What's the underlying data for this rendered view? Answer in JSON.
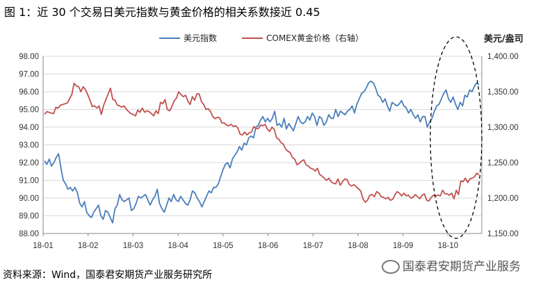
{
  "header": {
    "title": "图 1：近 30 个交易日美元指数与黄金价格的相关系数接近 0.45"
  },
  "footer": {
    "source": "资料来源：Wind，国泰君安期货产业服务研究所",
    "watermark": "国泰君安期货产业服务"
  },
  "chart_data": {
    "type": "line",
    "right_unit": "美元/盎司",
    "x_ticks": [
      "18-01",
      "18-02",
      "18-03",
      "18-04",
      "18-05",
      "18-06",
      "18-07",
      "18-08",
      "18-09",
      "18-10"
    ],
    "y_left": {
      "min": 88,
      "max": 98,
      "ticks": [
        "88.00",
        "89.00",
        "90.00",
        "91.00",
        "92.00",
        "93.00",
        "94.00",
        "95.00",
        "96.00",
        "97.00",
        "98.00"
      ]
    },
    "y_right": {
      "min": 1150,
      "max": 1400,
      "ticks": [
        "1,150.00",
        "1,200.00",
        "1,250.00",
        "1,300.00",
        "1,350.00",
        "1,400.00"
      ]
    },
    "grid": "horizontal",
    "legend_position": "top",
    "series": [
      {
        "name": "美元指数",
        "axis": "left",
        "color": "#4a7ebb",
        "values": [
          92.1,
          91.9,
          92.2,
          91.8,
          92.0,
          92.3,
          92.5,
          91.7,
          91.0,
          90.8,
          90.5,
          90.6,
          90.4,
          90.6,
          90.3,
          89.7,
          89.5,
          89.8,
          89.2,
          89.0,
          88.9,
          89.2,
          89.4,
          89.6,
          89.0,
          88.8,
          89.3,
          89.2,
          88.9,
          88.6,
          89.4,
          89.6,
          90.2,
          89.9,
          89.8,
          89.9,
          90.0,
          89.3,
          89.4,
          89.7,
          90.1,
          90.0,
          90.1,
          90.2,
          89.9,
          89.6,
          89.9,
          90.1,
          90.5,
          89.7,
          89.4,
          89.2,
          89.6,
          90.0,
          89.8,
          90.2,
          89.9,
          89.8,
          90.1,
          89.9,
          89.7,
          89.6,
          89.9,
          90.4,
          90.3,
          90.0,
          89.8,
          89.5,
          89.8,
          90.1,
          90.4,
          90.3,
          90.6,
          90.6,
          90.8,
          91.2,
          91.6,
          91.9,
          92.0,
          91.7,
          92.2,
          92.4,
          92.6,
          92.9,
          92.7,
          93.1,
          93.0,
          93.4,
          93.5,
          93.4,
          94.0,
          94.1,
          94.4,
          94.6,
          94.3,
          94.5,
          94.3,
          94.5,
          94.9,
          94.1,
          94.2,
          94.0,
          94.5,
          93.9,
          94.2,
          94.0,
          93.8,
          94.2,
          94.6,
          94.3,
          94.2,
          94.3,
          94.6,
          94.4,
          94.8,
          94.6,
          94.1,
          94.6,
          94.5,
          94.1,
          94.3,
          94.7,
          94.5,
          94.5,
          95.0,
          94.6,
          94.9,
          94.8,
          94.7,
          94.9,
          95.0,
          95.2,
          94.8,
          95.3,
          95.6,
          95.9,
          96.0,
          96.2,
          96.5,
          96.6,
          96.5,
          96.2,
          95.8,
          95.7,
          95.4,
          95.6,
          95.2,
          94.9,
          95.4,
          95.3,
          95.2,
          95.3,
          95.5,
          95.2,
          95.1,
          94.8,
          95.0,
          94.7,
          94.5,
          94.7,
          94.3,
          94.6,
          94.6,
          94.0,
          94.3,
          94.5,
          94.9,
          95.2,
          95.3,
          95.6,
          95.9,
          96.1,
          95.6,
          95.4,
          95.7,
          95.3,
          95.0,
          95.4,
          95.2,
          95.8,
          95.7,
          96.1,
          96.0,
          96.3,
          96.5,
          96.4
        ]
      },
      {
        "name": "COMEX黄金价格（右轴）",
        "axis": "right",
        "color": "#c0504d",
        "values": [
          1318,
          1322,
          1321,
          1320,
          1319,
          1328,
          1327,
          1331,
          1332,
          1333,
          1334,
          1340,
          1346,
          1362,
          1358,
          1357,
          1350,
          1357,
          1353,
          1346,
          1338,
          1329,
          1330,
          1327,
          1330,
          1318,
          1331,
          1339,
          1347,
          1355,
          1339,
          1338,
          1331,
          1330,
          1328,
          1330,
          1325,
          1322,
          1319,
          1318,
          1316,
          1324,
          1321,
          1327,
          1321,
          1323,
          1322,
          1319,
          1316,
          1323,
          1319,
          1335,
          1333,
          1339,
          1325,
          1323,
          1329,
          1337,
          1341,
          1350,
          1346,
          1343,
          1345,
          1337,
          1332,
          1343,
          1338,
          1347,
          1347,
          1336,
          1332,
          1325,
          1326,
          1322,
          1315,
          1312,
          1314,
          1313,
          1306,
          1306,
          1303,
          1302,
          1304,
          1301,
          1302,
          1299,
          1290,
          1289,
          1293,
          1289,
          1292,
          1293,
          1301,
          1298,
          1298,
          1303,
          1302,
          1304,
          1297,
          1294,
          1300,
          1297,
          1285,
          1283,
          1278,
          1276,
          1269,
          1266,
          1264,
          1257,
          1255,
          1247,
          1249,
          1252,
          1254,
          1247,
          1245,
          1242,
          1241,
          1238,
          1242,
          1233,
          1231,
          1228,
          1225,
          1228,
          1223,
          1221,
          1220,
          1227,
          1218,
          1223,
          1227,
          1226,
          1219,
          1217,
          1219,
          1216,
          1213,
          1210,
          1199,
          1194,
          1197,
          1204,
          1205,
          1202,
          1209,
          1207,
          1202,
          1201,
          1199,
          1201,
          1197,
          1198,
          1204,
          1209,
          1207,
          1203,
          1207,
          1203,
          1204,
          1200,
          1201,
          1205,
          1202,
          1199,
          1204,
          1206,
          1197,
          1196,
          1201,
          1204,
          1203,
          1204,
          1203,
          1211,
          1206,
          1206,
          1204,
          1207,
          1199,
          1211,
          1205,
          1224,
          1223,
          1228,
          1222,
          1227,
          1228,
          1230,
          1235,
          1233
        ]
      }
    ]
  }
}
